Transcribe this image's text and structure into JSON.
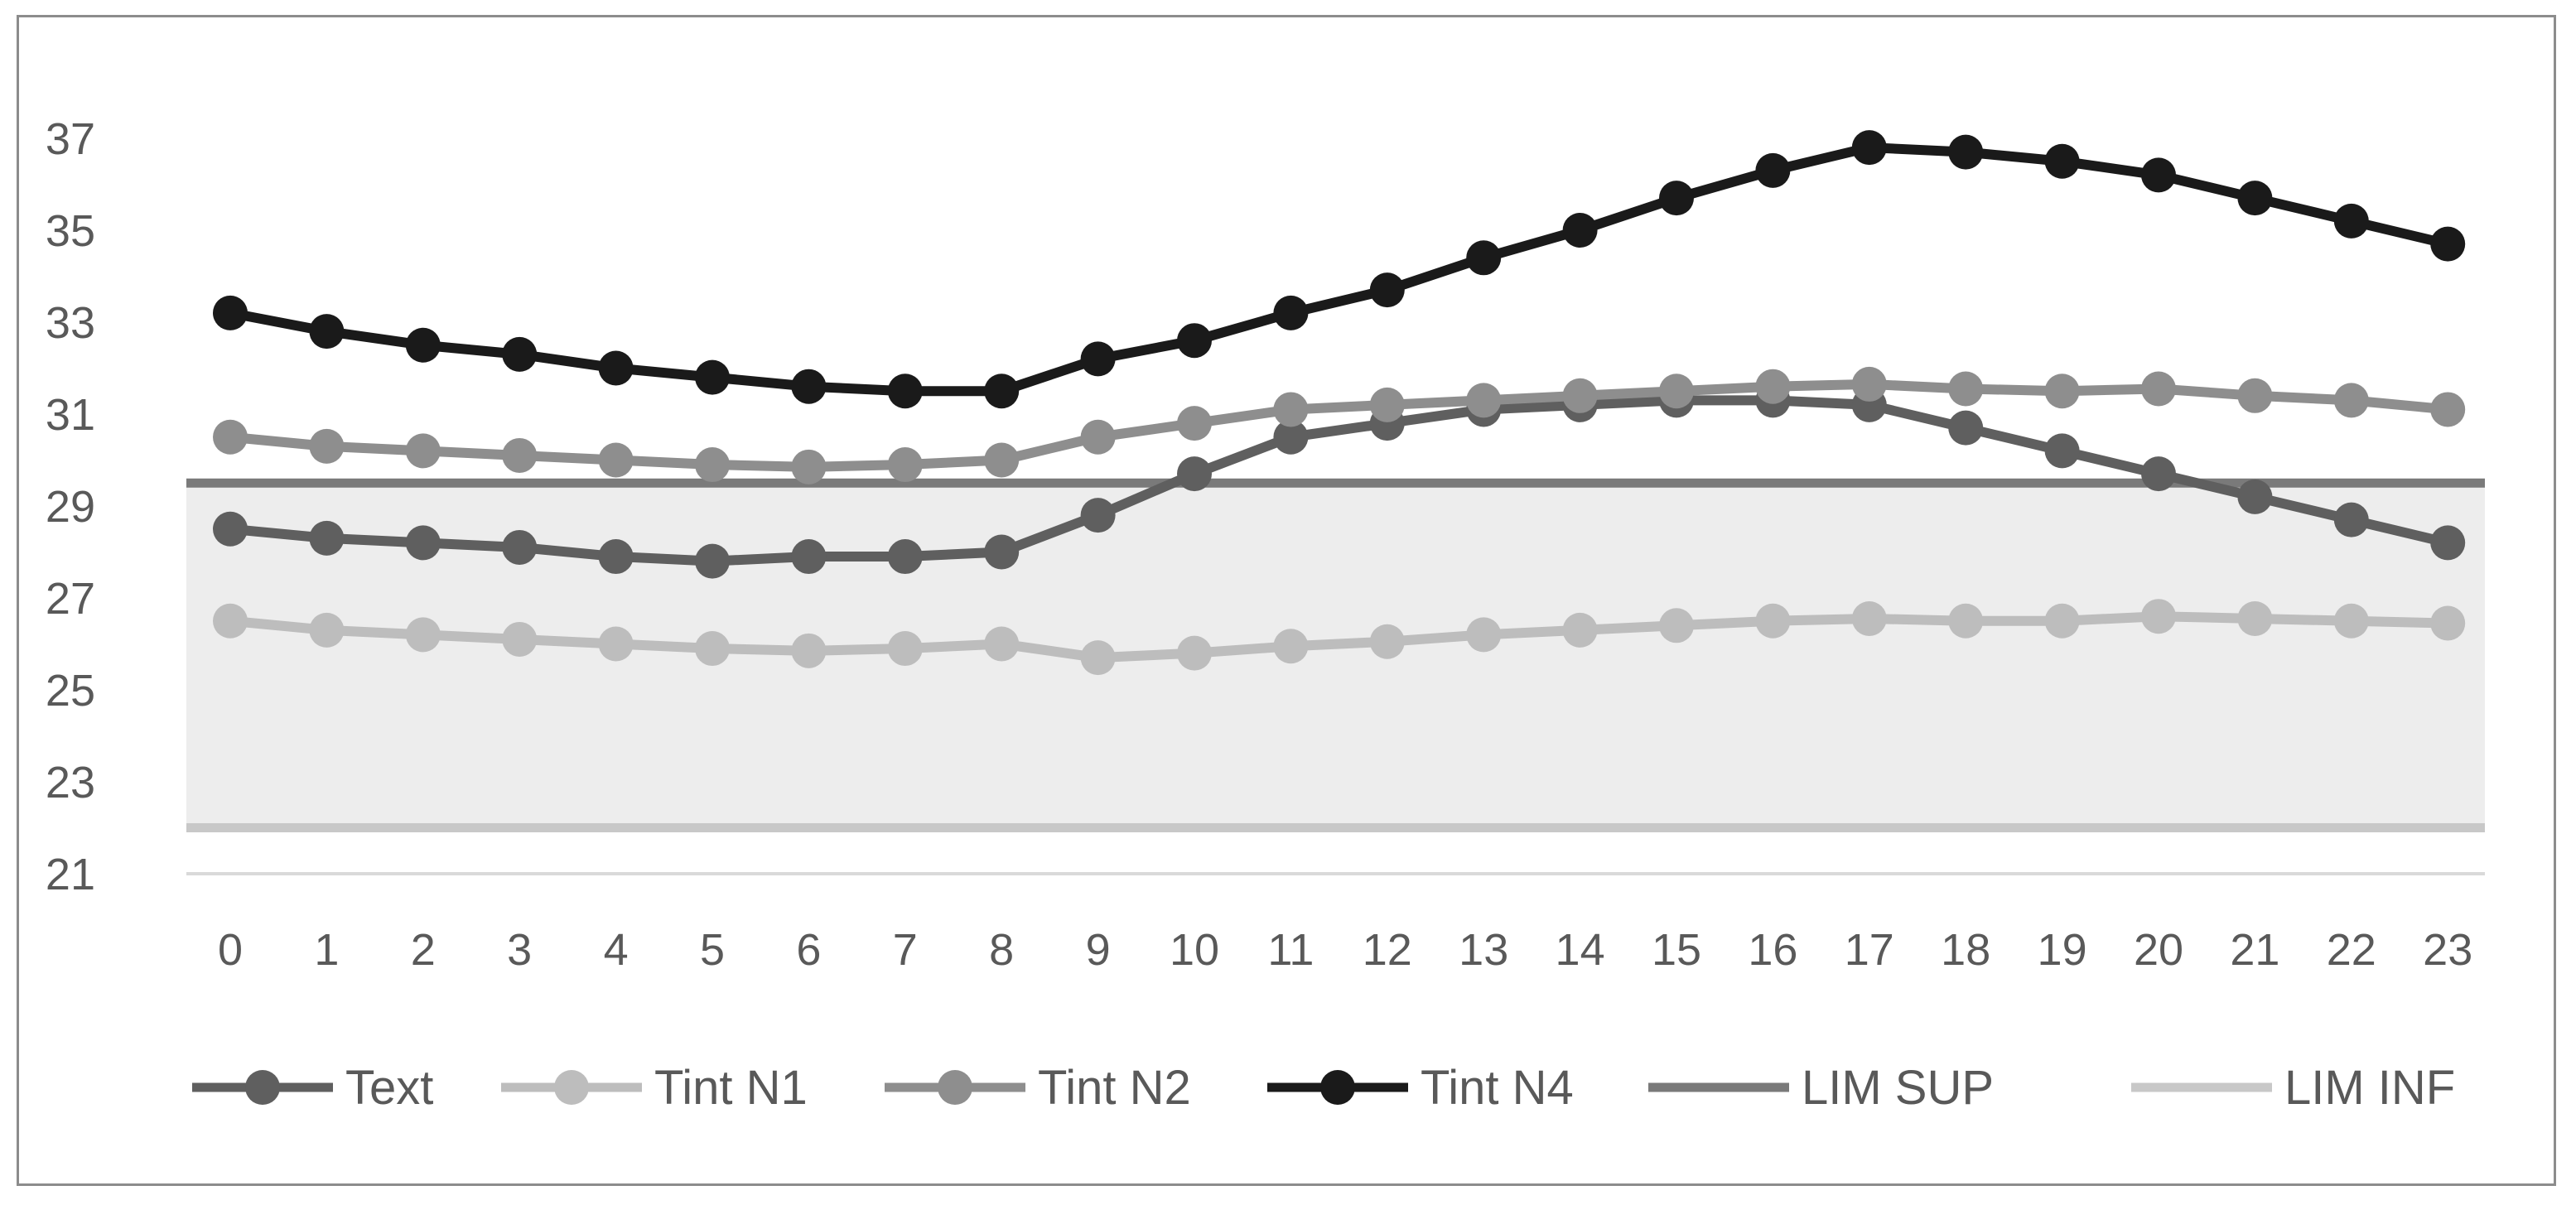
{
  "chart_data": {
    "type": "line",
    "title": "",
    "xlabel": "",
    "ylabel": "",
    "categories": [
      "0",
      "1",
      "2",
      "3",
      "4",
      "5",
      "6",
      "7",
      "8",
      "9",
      "10",
      "11",
      "12",
      "13",
      "14",
      "15",
      "16",
      "17",
      "18",
      "19",
      "20",
      "21",
      "22",
      "23"
    ],
    "y_ticks": [
      "21",
      "23",
      "25",
      "27",
      "29",
      "31",
      "33",
      "35",
      "37"
    ],
    "ylim": [
      21,
      37
    ],
    "grid": false,
    "legend_position": "bottom",
    "comfort_band": [
      22,
      29.5
    ],
    "band_color": "#ededed",
    "series": [
      {
        "name": "Text",
        "kind": "line-marker",
        "color": "#5f5f5f",
        "values": [
          28.5,
          28.3,
          28.2,
          28.1,
          27.9,
          27.8,
          27.9,
          27.9,
          28.0,
          28.8,
          29.7,
          30.5,
          30.8,
          31.1,
          31.2,
          31.3,
          31.3,
          31.2,
          30.7,
          30.2,
          29.7,
          29.2,
          28.7,
          28.2
        ]
      },
      {
        "name": "Tint N1",
        "kind": "line-marker",
        "color": "#bdbdbd",
        "values": [
          26.5,
          26.3,
          26.2,
          26.1,
          26.0,
          25.9,
          25.85,
          25.9,
          26.0,
          25.7,
          25.8,
          25.95,
          26.05,
          26.2,
          26.3,
          26.4,
          26.5,
          26.55,
          26.5,
          26.5,
          26.6,
          26.55,
          26.5,
          26.45
        ]
      },
      {
        "name": "Tint N2",
        "kind": "line-marker",
        "color": "#8e8e8e",
        "values": [
          30.5,
          30.3,
          30.2,
          30.1,
          30.0,
          29.9,
          29.85,
          29.9,
          30.0,
          30.5,
          30.8,
          31.1,
          31.2,
          31.3,
          31.4,
          31.5,
          31.6,
          31.65,
          31.55,
          31.5,
          31.55,
          31.4,
          31.3,
          31.1
        ]
      },
      {
        "name": "Tint N4",
        "kind": "line-marker",
        "color": "#1a1a1a",
        "values": [
          33.2,
          32.8,
          32.5,
          32.3,
          32.0,
          31.8,
          31.6,
          31.5,
          31.5,
          32.2,
          32.6,
          33.2,
          33.7,
          34.4,
          35.0,
          35.7,
          36.3,
          36.8,
          36.7,
          36.5,
          36.2,
          35.7,
          35.2,
          34.7
        ]
      },
      {
        "name": "LIM SUP",
        "kind": "line",
        "color": "#7a7a7a",
        "value": 29.5
      },
      {
        "name": "LIM INF",
        "kind": "line",
        "color": "#c8c8c8",
        "value": 22
      }
    ]
  }
}
